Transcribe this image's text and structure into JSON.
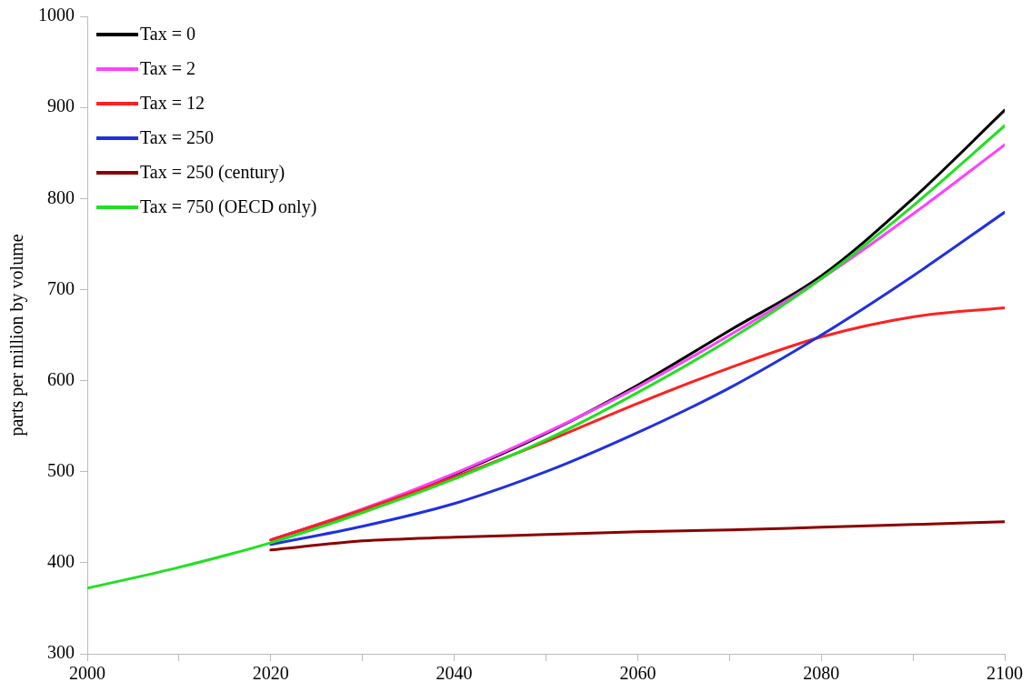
{
  "chart_data": {
    "type": "line",
    "ylabel": "parts per million by volume",
    "x": [
      2000,
      2010,
      2020,
      2030,
      2040,
      2050,
      2060,
      2070,
      2080,
      2090,
      2100
    ],
    "series": [
      {
        "name": "Tax = 0",
        "color": "#000000",
        "values": [
          null,
          null,
          425,
          458,
          497,
          542,
          595,
          655,
          715,
          800,
          897
        ]
      },
      {
        "name": "Tax = 2",
        "color": "#ff40ff",
        "values": [
          null,
          null,
          425,
          459,
          498,
          543,
          593,
          650,
          712,
          783,
          859
        ]
      },
      {
        "name": "Tax = 12",
        "color": "#ff2020",
        "values": [
          null,
          null,
          425,
          458,
          494,
          533,
          575,
          614,
          648,
          670,
          680
        ]
      },
      {
        "name": "Tax = 250",
        "color": "#2030e0",
        "values": [
          null,
          null,
          420,
          440,
          465,
          500,
          543,
          592,
          650,
          715,
          785
        ]
      },
      {
        "name": "Tax = 250 (century)",
        "color": "#8b0000",
        "values": [
          null,
          null,
          414,
          424,
          428,
          431,
          434,
          436,
          439,
          442,
          445
        ]
      },
      {
        "name": "Tax = 750 (OECD only)",
        "color": "#20e020",
        "values": [
          372,
          395,
          422,
          455,
          492,
          535,
          587,
          645,
          712,
          792,
          880
        ]
      }
    ],
    "xlim": [
      2000,
      2100
    ],
    "xticks": [
      2000,
      {
        "value": 2010,
        "label": null
      },
      2020,
      {
        "value": 2030,
        "label": null
      },
      2040,
      {
        "value": 2050,
        "label": null
      },
      2060,
      {
        "value": 2070,
        "label": null
      },
      2080,
      {
        "value": 2090,
        "label": null
      },
      2100
    ],
    "ylim": [
      300,
      1000
    ],
    "yticks": [
      300,
      400,
      500,
      600,
      700,
      800,
      900,
      1000
    ],
    "grid": false,
    "legend": "top left",
    "marker": "none",
    "line_style": "solid"
  }
}
